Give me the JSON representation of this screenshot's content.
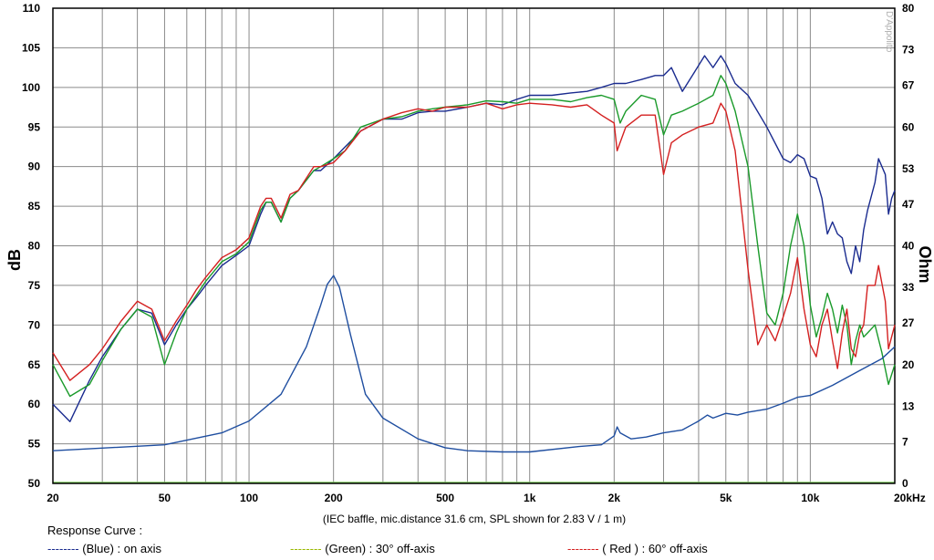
{
  "chart_data": {
    "type": "line",
    "y_label": "dB",
    "y2_label": "Ohm",
    "x_unit_label": "20kHz",
    "x_scale": "log",
    "xlim": [
      20,
      20000
    ],
    "ylim": [
      50,
      110
    ],
    "y2lim": [
      0,
      80
    ],
    "grid": true,
    "x_tick_labels": [
      {
        "value": 20,
        "label": "20"
      },
      {
        "value": 50,
        "label": "50"
      },
      {
        "value": 100,
        "label": "100"
      },
      {
        "value": 200,
        "label": "200"
      },
      {
        "value": 500,
        "label": "500"
      },
      {
        "value": 1000,
        "label": "1k"
      },
      {
        "value": 2000,
        "label": "2k"
      },
      {
        "value": 5000,
        "label": "5k"
      },
      {
        "value": 10000,
        "label": "10k"
      }
    ],
    "y_ticks": [
      50,
      55,
      60,
      65,
      70,
      75,
      80,
      85,
      90,
      95,
      100,
      105,
      110
    ],
    "y2_ticks": [
      {
        "value": 0,
        "label": "0"
      },
      {
        "value": 7,
        "label": "7"
      },
      {
        "value": 13,
        "label": "13"
      },
      {
        "value": 20,
        "label": "20"
      },
      {
        "value": 27,
        "label": "27"
      },
      {
        "value": 33,
        "label": "33"
      },
      {
        "value": 40,
        "label": "40"
      },
      {
        "value": 47,
        "label": "47"
      },
      {
        "value": 53,
        "label": "53"
      },
      {
        "value": 60,
        "label": "60"
      },
      {
        "value": 67,
        "label": "67"
      },
      {
        "value": 73,
        "label": "73"
      },
      {
        "value": 80,
        "label": "80"
      }
    ],
    "note": "(IEC baffle, mic.distance 31.6 cm, SPL shown for 2.83 V / 1 m)",
    "watermark": "D'Appolito",
    "series": [
      {
        "name": "on axis",
        "axis": "left",
        "color": "#1a2b8f",
        "points": [
          [
            20,
            60
          ],
          [
            23,
            57.8
          ],
          [
            27,
            63
          ],
          [
            30,
            66
          ],
          [
            35,
            69.5
          ],
          [
            40,
            72
          ],
          [
            45,
            71.5
          ],
          [
            50,
            67.5
          ],
          [
            55,
            70
          ],
          [
            60,
            72
          ],
          [
            65,
            73.5
          ],
          [
            70,
            75
          ],
          [
            80,
            77.5
          ],
          [
            90,
            78.8
          ],
          [
            100,
            80
          ],
          [
            110,
            84
          ],
          [
            115,
            85.5
          ],
          [
            120,
            85.5
          ],
          [
            130,
            83
          ],
          [
            140,
            86
          ],
          [
            150,
            87
          ],
          [
            170,
            89.5
          ],
          [
            180,
            89.5
          ],
          [
            200,
            91
          ],
          [
            220,
            92.5
          ],
          [
            250,
            94.5
          ],
          [
            300,
            96
          ],
          [
            350,
            96
          ],
          [
            400,
            96.8
          ],
          [
            450,
            97
          ],
          [
            500,
            97
          ],
          [
            600,
            97.5
          ],
          [
            700,
            98
          ],
          [
            800,
            97.8
          ],
          [
            900,
            98.5
          ],
          [
            1000,
            99
          ],
          [
            1200,
            99
          ],
          [
            1400,
            99.3
          ],
          [
            1600,
            99.5
          ],
          [
            1800,
            100
          ],
          [
            2000,
            100.5
          ],
          [
            2200,
            100.5
          ],
          [
            2500,
            101
          ],
          [
            2800,
            101.5
          ],
          [
            3000,
            101.5
          ],
          [
            3200,
            102.5
          ],
          [
            3500,
            99.5
          ],
          [
            3800,
            101.5
          ],
          [
            4200,
            104
          ],
          [
            4500,
            102.5
          ],
          [
            4800,
            104
          ],
          [
            5000,
            103
          ],
          [
            5400,
            100.5
          ],
          [
            6000,
            99
          ],
          [
            7000,
            95
          ],
          [
            8000,
            91
          ],
          [
            8500,
            90.5
          ],
          [
            9000,
            91.5
          ],
          [
            9500,
            91
          ],
          [
            10000,
            88.8
          ],
          [
            10500,
            88.5
          ],
          [
            11000,
            86
          ],
          [
            11500,
            81.5
          ],
          [
            12000,
            83
          ],
          [
            12500,
            81.5
          ],
          [
            13000,
            81
          ],
          [
            13500,
            78
          ],
          [
            14000,
            76.5
          ],
          [
            14500,
            80
          ],
          [
            15000,
            78
          ],
          [
            15500,
            82
          ],
          [
            16000,
            84.5
          ],
          [
            17000,
            88
          ],
          [
            17500,
            91
          ],
          [
            18500,
            89
          ],
          [
            19000,
            84
          ],
          [
            19500,
            86
          ],
          [
            20000,
            87
          ]
        ]
      },
      {
        "name": "30° off-axis",
        "axis": "left",
        "color": "#1a9a2a",
        "points": [
          [
            20,
            65
          ],
          [
            23,
            61
          ],
          [
            27,
            62.5
          ],
          [
            30,
            65.5
          ],
          [
            35,
            69.5
          ],
          [
            40,
            72
          ],
          [
            45,
            71
          ],
          [
            50,
            65
          ],
          [
            55,
            69
          ],
          [
            60,
            72
          ],
          [
            65,
            73.8
          ],
          [
            70,
            75.5
          ],
          [
            80,
            78
          ],
          [
            90,
            79
          ],
          [
            100,
            80.5
          ],
          [
            110,
            84.5
          ],
          [
            115,
            85.5
          ],
          [
            120,
            85.5
          ],
          [
            130,
            83
          ],
          [
            140,
            86
          ],
          [
            150,
            87
          ],
          [
            170,
            89.5
          ],
          [
            180,
            90
          ],
          [
            200,
            91
          ],
          [
            220,
            92
          ],
          [
            250,
            95
          ],
          [
            300,
            96
          ],
          [
            350,
            96.3
          ],
          [
            400,
            97
          ],
          [
            450,
            97.3
          ],
          [
            500,
            97.5
          ],
          [
            600,
            97.8
          ],
          [
            700,
            98.3
          ],
          [
            800,
            98.2
          ],
          [
            900,
            98
          ],
          [
            1000,
            98.5
          ],
          [
            1200,
            98.5
          ],
          [
            1400,
            98.2
          ],
          [
            1600,
            98.7
          ],
          [
            1800,
            99
          ],
          [
            2000,
            98.5
          ],
          [
            2100,
            95.5
          ],
          [
            2200,
            97
          ],
          [
            2500,
            99
          ],
          [
            2800,
            98.5
          ],
          [
            3000,
            94
          ],
          [
            3200,
            96.5
          ],
          [
            3500,
            97
          ],
          [
            4000,
            98
          ],
          [
            4500,
            99
          ],
          [
            4800,
            101.5
          ],
          [
            5000,
            100.5
          ],
          [
            5400,
            97
          ],
          [
            6000,
            90
          ],
          [
            6500,
            80
          ],
          [
            7000,
            71.5
          ],
          [
            7500,
            70
          ],
          [
            8000,
            74
          ],
          [
            8500,
            80
          ],
          [
            9000,
            84
          ],
          [
            9500,
            80
          ],
          [
            10000,
            72.5
          ],
          [
            10500,
            68.5
          ],
          [
            11000,
            71
          ],
          [
            11500,
            74
          ],
          [
            12000,
            72
          ],
          [
            12500,
            69
          ],
          [
            13000,
            72.5
          ],
          [
            13500,
            70
          ],
          [
            14000,
            65
          ],
          [
            14500,
            68
          ],
          [
            15000,
            70
          ],
          [
            15500,
            68.5
          ],
          [
            16000,
            69
          ],
          [
            17000,
            70
          ],
          [
            18000,
            66.5
          ],
          [
            19000,
            62.5
          ],
          [
            20000,
            65
          ]
        ]
      },
      {
        "name": "60° off-axis",
        "axis": "left",
        "color": "#d42020",
        "points": [
          [
            20,
            66.5
          ],
          [
            23,
            63
          ],
          [
            27,
            65
          ],
          [
            30,
            67
          ],
          [
            35,
            70.5
          ],
          [
            40,
            73
          ],
          [
            45,
            72
          ],
          [
            50,
            68
          ],
          [
            55,
            70.5
          ],
          [
            60,
            72.5
          ],
          [
            65,
            74.5
          ],
          [
            70,
            76
          ],
          [
            80,
            78.5
          ],
          [
            90,
            79.5
          ],
          [
            100,
            81
          ],
          [
            110,
            85
          ],
          [
            115,
            86
          ],
          [
            120,
            86
          ],
          [
            130,
            83.5
          ],
          [
            140,
            86.5
          ],
          [
            150,
            87
          ],
          [
            170,
            90
          ],
          [
            180,
            90
          ],
          [
            200,
            90.5
          ],
          [
            220,
            92
          ],
          [
            250,
            94.5
          ],
          [
            300,
            96
          ],
          [
            350,
            96.8
          ],
          [
            400,
            97.3
          ],
          [
            450,
            97
          ],
          [
            500,
            97.5
          ],
          [
            600,
            97.5
          ],
          [
            700,
            98
          ],
          [
            800,
            97.3
          ],
          [
            900,
            97.8
          ],
          [
            1000,
            98
          ],
          [
            1200,
            97.8
          ],
          [
            1400,
            97.5
          ],
          [
            1600,
            97.8
          ],
          [
            1800,
            96.5
          ],
          [
            2000,
            95.5
          ],
          [
            2050,
            92
          ],
          [
            2200,
            95
          ],
          [
            2500,
            96.5
          ],
          [
            2800,
            96.5
          ],
          [
            3000,
            89
          ],
          [
            3200,
            93
          ],
          [
            3500,
            94
          ],
          [
            4000,
            95
          ],
          [
            4500,
            95.5
          ],
          [
            4800,
            98
          ],
          [
            5000,
            97
          ],
          [
            5400,
            92
          ],
          [
            6000,
            77
          ],
          [
            6500,
            67.5
          ],
          [
            7000,
            70
          ],
          [
            7500,
            68
          ],
          [
            8000,
            71
          ],
          [
            8500,
            74
          ],
          [
            9000,
            78.5
          ],
          [
            9500,
            72
          ],
          [
            10000,
            67.5
          ],
          [
            10500,
            66
          ],
          [
            11000,
            70
          ],
          [
            11500,
            72
          ],
          [
            12000,
            68
          ],
          [
            12500,
            64.5
          ],
          [
            13000,
            69
          ],
          [
            13500,
            72
          ],
          [
            14000,
            67
          ],
          [
            14500,
            66
          ],
          [
            15000,
            69
          ],
          [
            15500,
            70
          ],
          [
            16000,
            75
          ],
          [
            17000,
            75
          ],
          [
            17500,
            77.5
          ],
          [
            18500,
            73
          ],
          [
            19000,
            67
          ],
          [
            20000,
            70
          ]
        ]
      },
      {
        "name": "impedance",
        "axis": "right",
        "color": "#1f4ea0",
        "points": [
          [
            20,
            5.5
          ],
          [
            50,
            6.5
          ],
          [
            80,
            8.5
          ],
          [
            100,
            10.5
          ],
          [
            130,
            15
          ],
          [
            160,
            23
          ],
          [
            180,
            30
          ],
          [
            190,
            33.5
          ],
          [
            200,
            35
          ],
          [
            210,
            33
          ],
          [
            230,
            25
          ],
          [
            260,
            15
          ],
          [
            300,
            11
          ],
          [
            400,
            7.5
          ],
          [
            500,
            6
          ],
          [
            600,
            5.5
          ],
          [
            800,
            5.3
          ],
          [
            1000,
            5.3
          ],
          [
            1500,
            6.2
          ],
          [
            1800,
            6.5
          ],
          [
            2000,
            8
          ],
          [
            2050,
            9.5
          ],
          [
            2100,
            8.5
          ],
          [
            2300,
            7.5
          ],
          [
            2600,
            7.8
          ],
          [
            3000,
            8.5
          ],
          [
            3500,
            9
          ],
          [
            4000,
            10.5
          ],
          [
            4300,
            11.5
          ],
          [
            4500,
            11
          ],
          [
            5000,
            11.8
          ],
          [
            5500,
            11.5
          ],
          [
            6000,
            12
          ],
          [
            7000,
            12.5
          ],
          [
            8000,
            13.5
          ],
          [
            9000,
            14.5
          ],
          [
            10000,
            14.8
          ],
          [
            12000,
            16.5
          ],
          [
            15000,
            19
          ],
          [
            18000,
            21
          ],
          [
            20000,
            23
          ]
        ]
      }
    ]
  },
  "legend": {
    "title": "Response Curve :",
    "items": [
      {
        "text": "-------- (Blue)  : on axis",
        "color": "#1a2b8f"
      },
      {
        "text": "-------- (Green) : 30° off-axis",
        "color": "#9ab800"
      },
      {
        "text": "-------- ( Red ) : 60° off-axis",
        "color": "#d42020"
      }
    ]
  }
}
